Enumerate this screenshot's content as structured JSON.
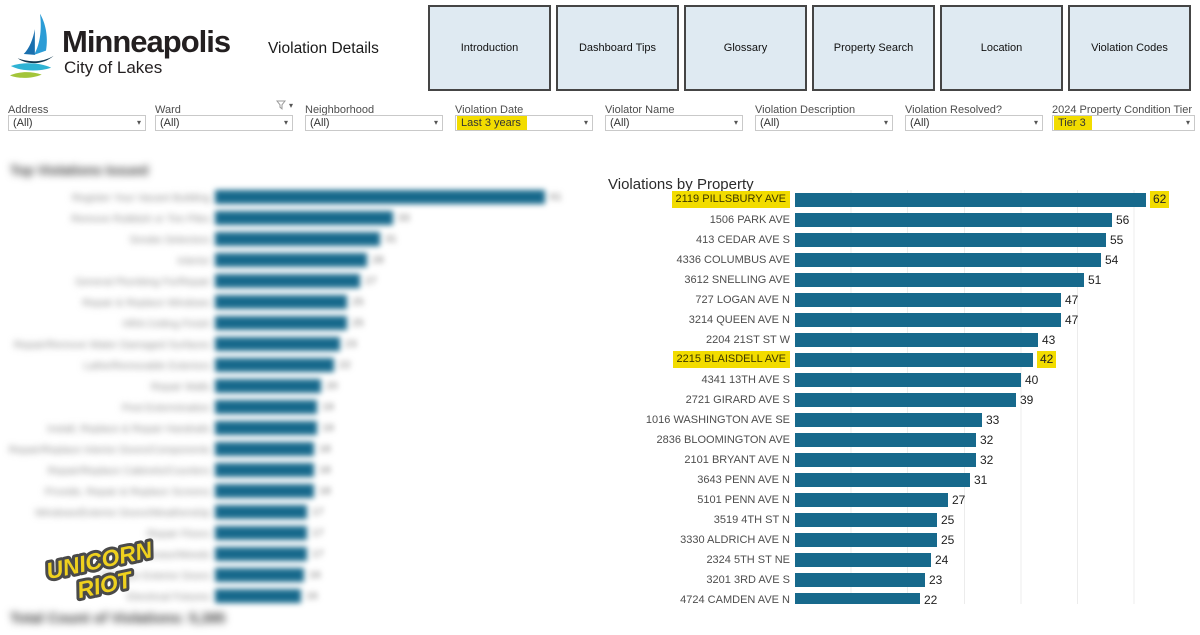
{
  "header": {
    "brand": {
      "name": "Minneapolis",
      "tagline": "City of Lakes"
    },
    "page_title": "Violation Details",
    "nav_buttons": [
      {
        "label": "Introduction"
      },
      {
        "label": "Dashboard Tips"
      },
      {
        "label": "Glossary"
      },
      {
        "label": "Property Search"
      },
      {
        "label": "Location"
      },
      {
        "label": "Violation Codes"
      }
    ]
  },
  "filters": [
    {
      "label": "Address",
      "value": "(All)",
      "highlighted": false,
      "funnel_icon": false
    },
    {
      "label": "Ward",
      "value": "(All)",
      "highlighted": false,
      "funnel_icon": true
    },
    {
      "label": "Neighborhood",
      "value": "(All)",
      "highlighted": false,
      "funnel_icon": false
    },
    {
      "label": "Violation Date",
      "value": "Last 3 years",
      "highlighted": true,
      "funnel_icon": false
    },
    {
      "label": "Violator Name",
      "value": "(All)",
      "highlighted": false,
      "funnel_icon": false
    },
    {
      "label": "Violation Description",
      "value": "(All)",
      "highlighted": false,
      "funnel_icon": false
    },
    {
      "label": "Violation Resolved?",
      "value": "(All)",
      "highlighted": false,
      "funnel_icon": false
    },
    {
      "label": "2024 Property Condition Tier",
      "value": "Tier 3",
      "highlighted": true,
      "funnel_icon": false
    }
  ],
  "left_panel": {
    "blurred": true,
    "title": "Top Violations Issued",
    "footer": "Total Count of Violations: 5,395",
    "rows": [
      {
        "label": "Register Your Vacant Building",
        "value": "61",
        "pct": 100
      },
      {
        "label": "Remove Rubbish or Tire Piles",
        "value": "33",
        "pct": 54
      },
      {
        "label": "Smoke Detectors",
        "value": "31",
        "pct": 50
      },
      {
        "label": "Interior",
        "value": "28",
        "pct": 46
      },
      {
        "label": "General Plumbing Fix/Repair",
        "value": "27",
        "pct": 44
      },
      {
        "label": "Repair & Replace Windows",
        "value": "25",
        "pct": 40
      },
      {
        "label": "HRA Ceiling Finish",
        "value": "25",
        "pct": 40
      },
      {
        "label": "Repair/Remove Water Damaged Surfaces",
        "value": "23",
        "pct": 38
      },
      {
        "label": "Lathe/Removable Exteriors",
        "value": "22",
        "pct": 36
      },
      {
        "label": "Repair Walls",
        "value": "20",
        "pct": 32
      },
      {
        "label": "Pest Extermination",
        "value": "19",
        "pct": 31
      },
      {
        "label": "Install, Replace & Repair Handrails",
        "value": "19",
        "pct": 31
      },
      {
        "label": "Repair/Replace Interior Doors/Components",
        "value": "18",
        "pct": 30
      },
      {
        "label": "Repair/Replace Cabinets/Counters",
        "value": "18",
        "pct": 30
      },
      {
        "label": "Provide, Repair & Replace Screens",
        "value": "18",
        "pct": 30
      },
      {
        "label": "Windows/Exterior Doors/Weatherstrip",
        "value": "17",
        "pct": 28
      },
      {
        "label": "Repair Floors",
        "value": "17",
        "pct": 28
      },
      {
        "label": "Cut Grass/Weeds",
        "value": "17",
        "pct": 28
      },
      {
        "label": "Replace Exterior Doors",
        "value": "16",
        "pct": 27
      },
      {
        "label": "Electrical Fixtures",
        "value": "16",
        "pct": 26
      }
    ]
  },
  "right_panel": {
    "title": "Violations by Property",
    "rows": [
      {
        "label": "2119 PILLSBURY AVE",
        "value": 62,
        "highlighted": true
      },
      {
        "label": "1506 PARK AVE",
        "value": 56,
        "highlighted": false
      },
      {
        "label": "413 CEDAR AVE S",
        "value": 55,
        "highlighted": false
      },
      {
        "label": "4336 COLUMBUS AVE",
        "value": 54,
        "highlighted": false
      },
      {
        "label": "3612 SNELLING AVE",
        "value": 51,
        "highlighted": false
      },
      {
        "label": "727 LOGAN AVE N",
        "value": 47,
        "highlighted": false
      },
      {
        "label": "3214 QUEEN AVE N",
        "value": 47,
        "highlighted": false
      },
      {
        "label": "2204 21ST ST W",
        "value": 43,
        "highlighted": false
      },
      {
        "label": "2215 BLAISDELL AVE",
        "value": 42,
        "highlighted": true
      },
      {
        "label": "4341 13TH AVE S",
        "value": 40,
        "highlighted": false
      },
      {
        "label": "2721 GIRARD AVE S",
        "value": 39,
        "highlighted": false
      },
      {
        "label": "1016 WASHINGTON AVE SE",
        "value": 33,
        "highlighted": false
      },
      {
        "label": "2836 BLOOMINGTON AVE",
        "value": 32,
        "highlighted": false
      },
      {
        "label": "2101 BRYANT AVE N",
        "value": 32,
        "highlighted": false
      },
      {
        "label": "3643 PENN AVE N",
        "value": 31,
        "highlighted": false
      },
      {
        "label": "5101 PENN AVE N",
        "value": 27,
        "highlighted": false
      },
      {
        "label": "3519 4TH ST N",
        "value": 25,
        "highlighted": false
      },
      {
        "label": "3330 ALDRICH AVE N",
        "value": 25,
        "highlighted": false
      },
      {
        "label": "2324 5TH ST NE",
        "value": 24,
        "highlighted": false
      },
      {
        "label": "3201 3RD AVE S",
        "value": 23,
        "highlighted": false
      },
      {
        "label": "4724 CAMDEN AVE N",
        "value": 22,
        "highlighted": false
      }
    ]
  },
  "watermark": {
    "line1": "UNICORN",
    "line2": "RIOT"
  },
  "colors": {
    "bar_teal": "#17698c",
    "highlight_yellow": "#f2dc00",
    "nav_button_bg": "#dfeaf2",
    "nav_button_border": "#454545",
    "logo_blue": "#2b9cd6",
    "logo_dark_blue": "#1a6fae",
    "logo_navy": "#12384f",
    "logo_cyan": "#2fb3d4",
    "logo_green": "#a3c53a",
    "watermark_yellow": "#efd11e",
    "watermark_outline": "#4a4a4a"
  },
  "chart_data": [
    {
      "type": "bar",
      "orientation": "horizontal",
      "title": "Violations by Property",
      "categories": [
        "2119 PILLSBURY AVE",
        "1506 PARK AVE",
        "413 CEDAR AVE S",
        "4336 COLUMBUS AVE",
        "3612 SNELLING AVE",
        "727 LOGAN AVE N",
        "3214 QUEEN AVE N",
        "2204 21ST ST W",
        "2215 BLAISDELL AVE",
        "4341 13TH AVE S",
        "2721 GIRARD AVE S",
        "1016 WASHINGTON AVE SE",
        "2836 BLOOMINGTON AVE",
        "2101 BRYANT AVE N",
        "3643 PENN AVE N",
        "5101 PENN AVE N",
        "3519 4TH ST N",
        "3330 ALDRICH AVE N",
        "2324 5TH ST NE",
        "3201 3RD AVE S",
        "4724 CAMDEN AVE N"
      ],
      "values": [
        62,
        56,
        55,
        54,
        51,
        47,
        47,
        43,
        42,
        40,
        39,
        33,
        32,
        32,
        31,
        27,
        25,
        25,
        24,
        23,
        22
      ],
      "highlighted_categories": [
        "2119 PILLSBURY AVE",
        "2215 BLAISDELL AVE"
      ],
      "xlim": [
        0,
        65
      ],
      "grid": "faint vertical gridlines every 10 units",
      "legend": "none",
      "bar_color": "#17698c"
    },
    {
      "type": "bar",
      "orientation": "horizontal",
      "title": "Top Violations Issued",
      "note": "panel is intentionally blurred/redacted in the source image; labels and values are approximate, bar lengths measured as percent of longest bar",
      "categories": [
        "Register Your Vacant Building",
        "Remove Rubbish or Tire Piles",
        "Smoke Detectors",
        "Interior",
        "General Plumbing Fix/Repair",
        "Repair & Replace Windows",
        "HRA Ceiling Finish",
        "Repair/Remove Water Damaged Surfaces",
        "Lathe/Removable Exteriors",
        "Repair Walls",
        "Pest Extermination",
        "Install, Replace & Repair Handrails",
        "Repair/Replace Interior Doors/Components",
        "Repair/Replace Cabinets/Counters",
        "Provide, Repair & Replace Screens",
        "Windows/Exterior Doors/Weatherstrip",
        "Repair Floors",
        "Cut Grass/Weeds",
        "Replace Exterior Doors",
        "Electrical Fixtures"
      ],
      "relative_length_pct": [
        100,
        54,
        50,
        46,
        44,
        40,
        40,
        38,
        36,
        32,
        31,
        31,
        30,
        30,
        30,
        28,
        28,
        28,
        27,
        26
      ],
      "bar_color": "#17698c",
      "legend": "none"
    }
  ]
}
